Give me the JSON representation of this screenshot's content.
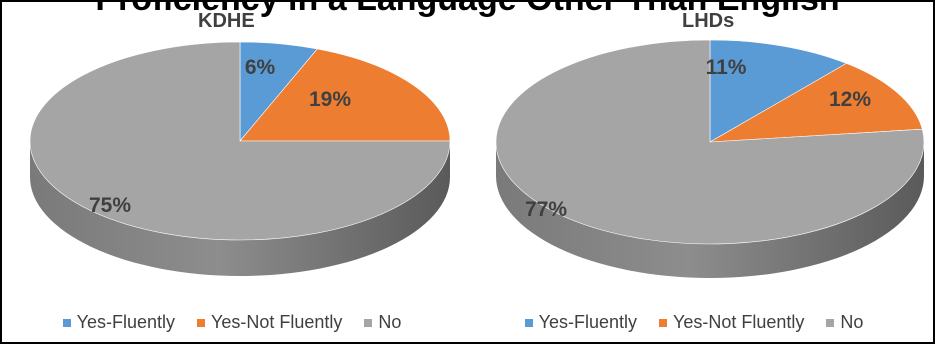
{
  "figure": {
    "title": "Proficiency in a Language Other Than English"
  },
  "colors": {
    "yes_fluently": "#5B9BD5",
    "yes_not_fluently": "#ED7D31",
    "no": "#A5A5A5"
  },
  "chart_data": [
    {
      "type": "pie",
      "title": "KDHE",
      "legend_position": "bottom",
      "categories": [
        "Yes-Fluently",
        "Yes-Not Fluently",
        "No"
      ],
      "values": [
        6,
        19,
        75
      ],
      "labels": [
        "6%",
        "19%",
        "75%"
      ]
    },
    {
      "type": "pie",
      "title": "LHDs",
      "legend_position": "bottom",
      "categories": [
        "Yes-Fluently",
        "Yes-Not Fluently",
        "No"
      ],
      "values": [
        11,
        12,
        77
      ],
      "labels": [
        "11%",
        "12%",
        "77%"
      ]
    }
  ]
}
